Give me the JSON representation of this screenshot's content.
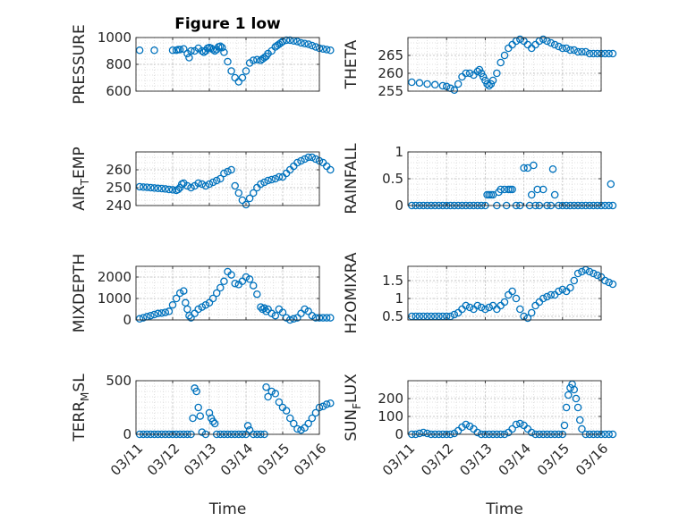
{
  "chart_data": [
    {
      "type": "scatter",
      "title": "Figure 1 low",
      "ylabel": "PRESSURE",
      "xlabel": "",
      "xlim": [
        "03/11",
        "03/16"
      ],
      "ylim": [
        600,
        1000
      ],
      "yticks": [
        600,
        800,
        1000
      ],
      "xticks": [
        "03/11",
        "03/12",
        "03/13",
        "03/14",
        "03/15",
        "03/16"
      ],
      "grid": true,
      "series": [
        {
          "x": [
            0.1,
            0.5,
            1.0,
            1.1,
            1.15,
            1.2,
            1.3,
            1.4,
            1.45,
            1.5,
            1.6,
            1.7,
            1.8,
            1.85,
            1.9,
            1.95,
            2.0,
            2.05,
            2.1,
            2.15,
            2.2,
            2.25,
            2.3,
            2.35,
            2.4,
            2.5,
            2.6,
            2.7,
            2.8,
            2.9,
            3.0,
            3.1,
            3.2,
            3.3,
            3.4,
            3.45,
            3.5,
            3.55,
            3.6,
            3.7,
            3.8,
            3.85,
            3.9,
            3.95,
            4.0,
            4.1,
            4.2,
            4.3,
            4.4,
            4.5,
            4.6,
            4.7,
            4.8,
            4.9,
            5.0,
            5.1,
            5.2,
            5.3
          ],
          "y": [
            905,
            905,
            905,
            905,
            910,
            910,
            915,
            880,
            850,
            900,
            900,
            920,
            900,
            890,
            900,
            920,
            925,
            920,
            910,
            900,
            910,
            930,
            935,
            925,
            890,
            820,
            750,
            700,
            670,
            700,
            750,
            810,
            830,
            835,
            830,
            840,
            850,
            860,
            880,
            900,
            930,
            940,
            950,
            960,
            970,
            980,
            980,
            975,
            970,
            960,
            955,
            950,
            940,
            930,
            920,
            915,
            910,
            905
          ]
        }
      ]
    },
    {
      "type": "scatter",
      "title": "",
      "ylabel": "THETA",
      "xlabel": "",
      "xlim": [
        "03/11",
        "03/16"
      ],
      "ylim": [
        255,
        270
      ],
      "yticks": [
        255,
        260,
        265
      ],
      "xticks": [
        "03/11",
        "03/12",
        "03/13",
        "03/14",
        "03/15",
        "03/16"
      ],
      "grid": true,
      "series": [
        {
          "x": [
            0.1,
            0.3,
            0.5,
            0.7,
            0.9,
            1.0,
            1.1,
            1.2,
            1.3,
            1.4,
            1.5,
            1.6,
            1.7,
            1.8,
            1.85,
            1.9,
            1.95,
            2.0,
            2.05,
            2.1,
            2.15,
            2.2,
            2.3,
            2.4,
            2.5,
            2.6,
            2.7,
            2.8,
            2.9,
            3.0,
            3.1,
            3.2,
            3.3,
            3.4,
            3.5,
            3.6,
            3.7,
            3.8,
            3.9,
            4.0,
            4.1,
            4.2,
            4.3,
            4.4,
            4.5,
            4.6,
            4.7,
            4.8,
            4.9,
            5.0,
            5.1,
            5.2,
            5.3
          ],
          "y": [
            257.5,
            257.3,
            257,
            256.8,
            256.5,
            256.3,
            255.8,
            255.3,
            257,
            259,
            260,
            260,
            259.5,
            260.5,
            261,
            260,
            259,
            258,
            257,
            256.5,
            257,
            258,
            260,
            263,
            265,
            267,
            268,
            269,
            269.5,
            269,
            268,
            267,
            268,
            269,
            269.5,
            269,
            268.5,
            268,
            267.5,
            267,
            267,
            266.5,
            266.5,
            266,
            266,
            266,
            265.5,
            265.5,
            265.5,
            265.5,
            265.5,
            265.5,
            265.5
          ]
        }
      ]
    },
    {
      "type": "scatter",
      "title": "",
      "ylabel": "AIR_TEMP",
      "xlabel": "",
      "xlim": [
        "03/11",
        "03/16"
      ],
      "ylim": [
        240,
        270
      ],
      "yticks": [
        240,
        250,
        260
      ],
      "xticks": [
        "03/11",
        "03/12",
        "03/13",
        "03/14",
        "03/15",
        "03/16"
      ],
      "grid": true,
      "series": [
        {
          "x": [
            0.1,
            0.2,
            0.3,
            0.4,
            0.5,
            0.6,
            0.7,
            0.8,
            0.9,
            1.0,
            1.1,
            1.15,
            1.2,
            1.25,
            1.3,
            1.4,
            1.5,
            1.6,
            1.7,
            1.8,
            1.9,
            2.0,
            2.1,
            2.2,
            2.3,
            2.4,
            2.5,
            2.6,
            2.7,
            2.8,
            2.9,
            3.0,
            3.1,
            3.2,
            3.3,
            3.4,
            3.5,
            3.6,
            3.7,
            3.8,
            3.9,
            4.0,
            4.1,
            4.2,
            4.3,
            4.4,
            4.5,
            4.6,
            4.7,
            4.8,
            4.9,
            5.0,
            5.1,
            5.2,
            5.3
          ],
          "y": [
            250.5,
            250.3,
            250.2,
            250,
            249.8,
            249.6,
            249.5,
            249.3,
            249,
            248.8,
            248.5,
            249,
            250,
            252,
            252.5,
            251,
            250,
            251,
            252.5,
            252,
            251,
            252,
            253,
            254,
            255,
            258,
            259,
            260,
            251,
            247,
            243,
            240.5,
            244,
            247,
            250,
            252,
            253,
            254,
            254.5,
            255,
            256,
            256,
            258,
            260,
            262,
            264,
            265,
            266,
            267,
            267,
            266,
            265,
            264,
            262,
            260
          ]
        }
      ]
    },
    {
      "type": "scatter",
      "title": "",
      "ylabel": "RAINFALL",
      "xlabel": "",
      "xlim": [
        "03/11",
        "03/16"
      ],
      "ylim": [
        0,
        1
      ],
      "yticks": [
        0,
        0.5,
        1
      ],
      "xticks": [
        "03/11",
        "03/12",
        "03/13",
        "03/14",
        "03/15",
        "03/16"
      ],
      "grid": true,
      "series": [
        {
          "x": [
            0.1,
            0.2,
            0.3,
            0.4,
            0.5,
            0.6,
            0.7,
            0.8,
            0.9,
            1.0,
            1.1,
            1.2,
            1.3,
            1.4,
            1.5,
            1.6,
            1.7,
            1.8,
            1.9,
            2.0,
            2.05,
            2.1,
            2.15,
            2.2,
            2.3,
            2.35,
            2.4,
            2.5,
            2.55,
            2.6,
            2.65,
            2.7,
            2.8,
            2.9,
            3.0,
            3.1,
            3.15,
            3.2,
            3.25,
            3.3,
            3.35,
            3.4,
            3.5,
            3.6,
            3.7,
            3.75,
            3.8,
            3.9,
            4.0,
            4.1,
            4.2,
            4.3,
            4.4,
            4.5,
            4.6,
            4.7,
            4.8,
            4.9,
            5.0,
            5.1,
            5.2,
            5.25,
            5.3
          ],
          "y": [
            0,
            0,
            0,
            0,
            0,
            0,
            0,
            0,
            0,
            0,
            0,
            0,
            0,
            0,
            0,
            0,
            0,
            0,
            0,
            0,
            0.2,
            0.2,
            0.2,
            0.2,
            0,
            0.25,
            0.3,
            0.3,
            0,
            0.3,
            0.3,
            0.3,
            0,
            0,
            0.7,
            0.7,
            0,
            0.2,
            0.75,
            0,
            0.3,
            0,
            0.3,
            0,
            0,
            0.68,
            0.2,
            0,
            0,
            0,
            0,
            0,
            0,
            0,
            0,
            0,
            0,
            0,
            0,
            0,
            0,
            0.4,
            0
          ]
        }
      ]
    },
    {
      "type": "scatter",
      "title": "",
      "ylabel": "MIXDEPTH",
      "xlabel": "",
      "xlim": [
        "03/11",
        "03/16"
      ],
      "ylim": [
        0,
        2500
      ],
      "yticks": [
        0,
        1000,
        2000
      ],
      "xticks": [
        "03/11",
        "03/12",
        "03/13",
        "03/14",
        "03/15",
        "03/16"
      ],
      "grid": true,
      "series": [
        {
          "x": [
            0.1,
            0.2,
            0.3,
            0.4,
            0.5,
            0.6,
            0.7,
            0.8,
            0.9,
            1.0,
            1.1,
            1.2,
            1.3,
            1.35,
            1.4,
            1.45,
            1.5,
            1.6,
            1.7,
            1.8,
            1.9,
            2.0,
            2.1,
            2.2,
            2.3,
            2.4,
            2.5,
            2.6,
            2.7,
            2.8,
            2.9,
            3.0,
            3.1,
            3.2,
            3.3,
            3.4,
            3.45,
            3.5,
            3.55,
            3.6,
            3.7,
            3.8,
            3.9,
            4.0,
            4.1,
            4.2,
            4.3,
            4.4,
            4.5,
            4.6,
            4.7,
            4.8,
            4.9,
            5.0,
            5.1,
            5.2,
            5.3
          ],
          "y": [
            50,
            100,
            150,
            200,
            250,
            300,
            320,
            350,
            400,
            700,
            1000,
            1250,
            1350,
            800,
            500,
            200,
            100,
            300,
            500,
            600,
            700,
            800,
            1000,
            1250,
            1500,
            1800,
            2250,
            2100,
            1700,
            1650,
            1800,
            2000,
            1900,
            1600,
            1200,
            600,
            500,
            550,
            400,
            500,
            300,
            200,
            500,
            350,
            100,
            0,
            50,
            100,
            300,
            500,
            400,
            200,
            100,
            100,
            100,
            100,
            100
          ]
        }
      ]
    },
    {
      "type": "scatter",
      "title": "",
      "ylabel": "H2OMIXRA",
      "xlabel": "",
      "xlim": [
        "03/11",
        "03/16"
      ],
      "ylim": [
        0.4,
        1.9
      ],
      "yticks": [
        0.5,
        1,
        1.5
      ],
      "xticks": [
        "03/11",
        "03/12",
        "03/13",
        "03/14",
        "03/15",
        "03/16"
      ],
      "grid": true,
      "series": [
        {
          "x": [
            0.1,
            0.2,
            0.3,
            0.4,
            0.5,
            0.6,
            0.7,
            0.8,
            0.9,
            1.0,
            1.1,
            1.2,
            1.3,
            1.4,
            1.5,
            1.6,
            1.7,
            1.8,
            1.9,
            2.0,
            2.1,
            2.2,
            2.3,
            2.4,
            2.5,
            2.6,
            2.7,
            2.8,
            2.9,
            3.0,
            3.1,
            3.2,
            3.3,
            3.4,
            3.5,
            3.6,
            3.7,
            3.8,
            3.9,
            4.0,
            4.1,
            4.2,
            4.3,
            4.4,
            4.5,
            4.6,
            4.7,
            4.8,
            4.9,
            5.0,
            5.1,
            5.2,
            5.3
          ],
          "y": [
            0.5,
            0.5,
            0.5,
            0.5,
            0.5,
            0.5,
            0.5,
            0.5,
            0.5,
            0.5,
            0.5,
            0.55,
            0.6,
            0.7,
            0.8,
            0.75,
            0.7,
            0.8,
            0.75,
            0.7,
            0.75,
            0.8,
            0.7,
            0.8,
            0.9,
            1.1,
            1.2,
            1.0,
            0.7,
            0.5,
            0.45,
            0.6,
            0.8,
            0.9,
            1.0,
            1.05,
            1.1,
            1.1,
            1.2,
            1.25,
            1.2,
            1.3,
            1.5,
            1.7,
            1.75,
            1.8,
            1.75,
            1.7,
            1.65,
            1.6,
            1.5,
            1.45,
            1.4
          ]
        }
      ]
    },
    {
      "type": "scatter",
      "title": "",
      "ylabel": "TERR_MSL",
      "xlabel": "Time",
      "xlim": [
        "03/11",
        "03/16"
      ],
      "ylim": [
        0,
        500
      ],
      "yticks": [
        0,
        500
      ],
      "xticks": [
        "03/11",
        "03/12",
        "03/13",
        "03/14",
        "03/15",
        "03/16"
      ],
      "grid": true,
      "series": [
        {
          "x": [
            0.1,
            0.2,
            0.3,
            0.4,
            0.5,
            0.6,
            0.7,
            0.8,
            0.9,
            1.0,
            1.1,
            1.2,
            1.3,
            1.4,
            1.5,
            1.55,
            1.6,
            1.65,
            1.7,
            1.75,
            1.8,
            1.9,
            2.0,
            2.05,
            2.1,
            2.15,
            2.2,
            2.3,
            2.4,
            2.5,
            2.6,
            2.7,
            2.8,
            2.9,
            3.0,
            3.05,
            3.1,
            3.2,
            3.3,
            3.4,
            3.5,
            3.55,
            3.6,
            3.7,
            3.8,
            3.9,
            4.0,
            4.1,
            4.2,
            4.3,
            4.4,
            4.5,
            4.6,
            4.7,
            4.8,
            4.9,
            5.0,
            5.1,
            5.2,
            5.3
          ],
          "y": [
            0,
            0,
            0,
            0,
            0,
            0,
            0,
            0,
            0,
            0,
            0,
            0,
            0,
            0,
            0,
            150,
            430,
            400,
            250,
            170,
            20,
            0,
            200,
            150,
            120,
            100,
            0,
            0,
            0,
            0,
            0,
            0,
            0,
            0,
            0,
            80,
            40,
            0,
            0,
            0,
            0,
            440,
            350,
            400,
            380,
            300,
            250,
            220,
            150,
            100,
            50,
            40,
            60,
            100,
            150,
            200,
            250,
            260,
            280,
            290
          ]
        }
      ]
    },
    {
      "type": "scatter",
      "title": "",
      "ylabel": "SUN_FLUX",
      "xlabel": "Time",
      "xlim": [
        "03/11",
        "03/16"
      ],
      "ylim": [
        0,
        300
      ],
      "yticks": [
        0,
        100,
        200
      ],
      "xticks": [
        "03/11",
        "03/12",
        "03/13",
        "03/14",
        "03/15",
        "03/16"
      ],
      "grid": true,
      "series": [
        {
          "x": [
            0.1,
            0.2,
            0.3,
            0.4,
            0.5,
            0.6,
            0.7,
            0.8,
            0.9,
            1.0,
            1.1,
            1.2,
            1.3,
            1.4,
            1.5,
            1.6,
            1.7,
            1.8,
            1.9,
            2.0,
            2.1,
            2.2,
            2.3,
            2.4,
            2.5,
            2.6,
            2.7,
            2.8,
            2.9,
            3.0,
            3.1,
            3.2,
            3.3,
            3.4,
            3.5,
            3.6,
            3.7,
            3.8,
            3.9,
            4.0,
            4.05,
            4.1,
            4.15,
            4.2,
            4.25,
            4.3,
            4.35,
            4.4,
            4.45,
            4.5,
            4.6,
            4.7,
            4.8,
            4.9,
            5.0,
            5.1,
            5.2,
            5.3
          ],
          "y": [
            0,
            0,
            5,
            10,
            5,
            0,
            0,
            0,
            0,
            0,
            0,
            5,
            20,
            40,
            55,
            45,
            30,
            10,
            0,
            0,
            0,
            0,
            0,
            0,
            0,
            10,
            30,
            55,
            60,
            50,
            30,
            10,
            0,
            0,
            0,
            0,
            0,
            0,
            0,
            0,
            50,
            150,
            220,
            260,
            280,
            250,
            200,
            150,
            80,
            30,
            0,
            0,
            0,
            0,
            0,
            0,
            0,
            0
          ]
        }
      ]
    }
  ]
}
